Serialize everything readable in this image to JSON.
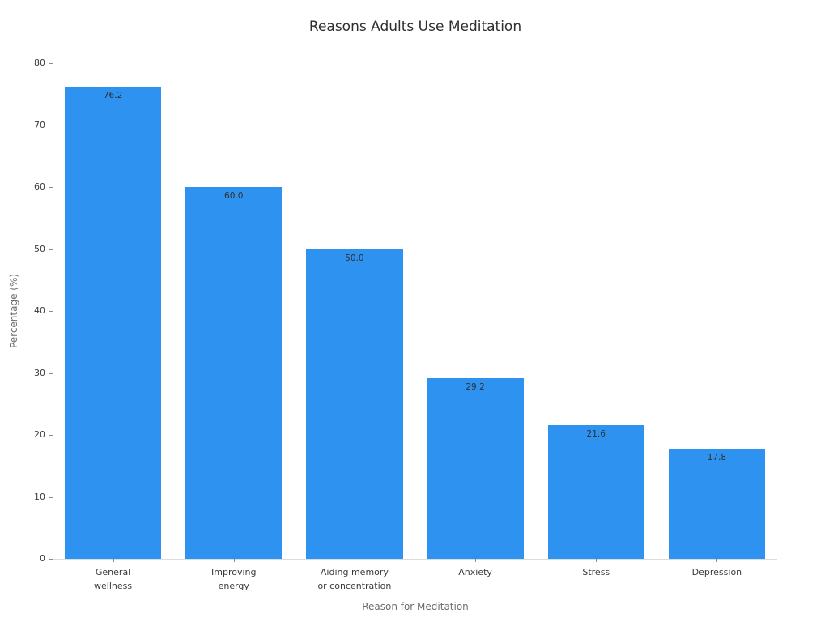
{
  "chart": {
    "title": "Reasons Adults Use Meditation",
    "xlabel": "Reason for Meditation",
    "ylabel": "Percentage (%)"
  },
  "chart_data": {
    "type": "bar",
    "title": "Reasons Adults Use Meditation",
    "xlabel": "Reason for Meditation",
    "ylabel": "Percentage (%)",
    "categories": [
      "General\nwellness",
      "Improving\nenergy",
      "Aiding memory\nor concentration",
      "Anxiety",
      "Stress",
      "Depression"
    ],
    "values": [
      76.2,
      60.0,
      50.0,
      29.2,
      21.6,
      17.8
    ],
    "value_label_format": "one_decimal",
    "ylim": [
      0,
      80
    ],
    "yticks": [
      0,
      10,
      20,
      30,
      40,
      50,
      60,
      70,
      80
    ],
    "bar_color": "#2e93f0",
    "grid": false,
    "legend": null,
    "spine_color": "#dcdcdc",
    "tick_color": "#8c8c8c",
    "text_color": "#3a3a3a",
    "axis_label_color": "#6e6e6e"
  }
}
